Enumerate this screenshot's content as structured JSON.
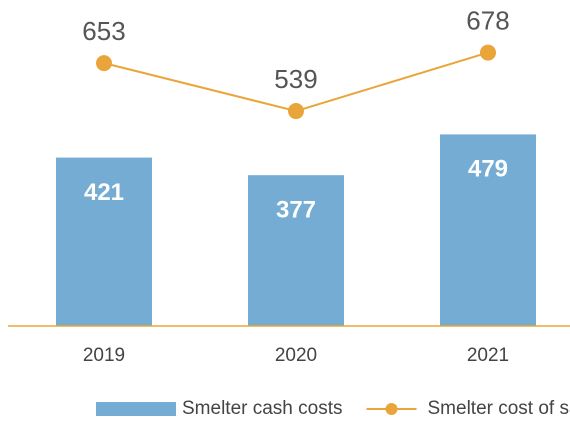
{
  "chart_data": {
    "type": "bar_line",
    "categories": [
      "2019",
      "2020",
      "2021"
    ],
    "series": [
      {
        "name": "Smelter cash costs",
        "type": "bar",
        "color": "#74acd3",
        "values": [
          421,
          377,
          479
        ]
      },
      {
        "name": "Smelter cost of sales",
        "type": "line",
        "axis": "y2",
        "color": "#e9a53a",
        "values": [
          653,
          539,
          678
        ]
      }
    ],
    "ylim": [
      0,
      815
    ],
    "y2lim": [
      28,
      803
    ],
    "legend": "bottom"
  }
}
